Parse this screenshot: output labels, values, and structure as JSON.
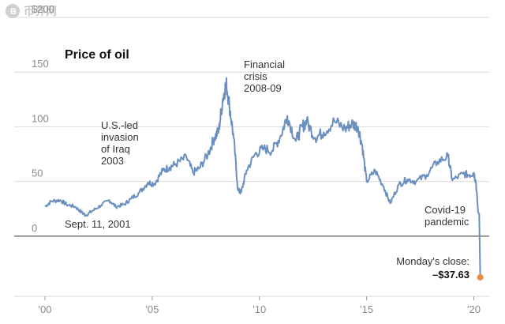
{
  "watermark": {
    "text": "币界网"
  },
  "chart_data": {
    "type": "line",
    "title": "Price of oil",
    "xlabel": "",
    "ylabel": "",
    "xlim": [
      2000.0,
      2020.35
    ],
    "ylim": [
      -55,
      200
    ],
    "y_ticks": [
      0,
      50,
      100,
      150,
      200
    ],
    "y_tick_labels": [
      "0",
      "50",
      "100",
      "150",
      "$200"
    ],
    "x_ticks": [
      2000,
      2005,
      2010,
      2015,
      2020
    ],
    "x_tick_labels": [
      "'00",
      "'05",
      "'10",
      "'15",
      "'20"
    ],
    "grid": true,
    "series": [
      {
        "color": "#6a8fbf",
        "x": [
          2000.0,
          2000.3,
          2000.7,
          2001.0,
          2001.4,
          2001.7,
          2001.9,
          2002.2,
          2002.6,
          2003.0,
          2003.3,
          2003.7,
          2004.0,
          2004.4,
          2004.8,
          2005.1,
          2005.5,
          2005.8,
          2006.1,
          2006.6,
          2006.9,
          2007.2,
          2007.6,
          2007.9,
          2008.1,
          2008.3,
          2008.45,
          2008.6,
          2008.8,
          2009.0,
          2009.15,
          2009.4,
          2009.8,
          2010.2,
          2010.6,
          2011.0,
          2011.3,
          2011.7,
          2012.0,
          2012.2,
          2012.6,
          2013.0,
          2013.5,
          2014.0,
          2014.3,
          2014.6,
          2014.8,
          2015.0,
          2015.4,
          2015.8,
          2016.1,
          2016.5,
          2016.9,
          2017.3,
          2017.8,
          2018.3,
          2018.8,
          2019.0,
          2019.5,
          2019.8,
          2020.0,
          2020.1,
          2020.2,
          2020.25,
          2020.3
        ],
        "y": [
          27,
          32,
          33,
          29,
          27,
          22,
          19,
          23,
          28,
          33,
          27,
          29,
          34,
          40,
          49,
          48,
          60,
          63,
          66,
          72,
          58,
          62,
          75,
          90,
          96,
          126,
          140,
          120,
          90,
          42,
          40,
          60,
          75,
          80,
          78,
          92,
          110,
          87,
          100,
          105,
          90,
          95,
          105,
          98,
          103,
          100,
          82,
          50,
          60,
          45,
          30,
          47,
          52,
          50,
          56,
          68,
          73,
          51,
          57,
          56,
          58,
          49,
          22,
          20,
          -37.63
        ]
      }
    ],
    "annotations": [
      {
        "id": "sept11",
        "lines": [
          "Sept. 11, 2001"
        ]
      },
      {
        "id": "iraq",
        "lines": [
          "U.S.-led",
          "invasion",
          "of Iraq",
          "2003"
        ]
      },
      {
        "id": "crisis",
        "lines": [
          "Financial",
          "crisis",
          "2008-09"
        ]
      },
      {
        "id": "covid",
        "lines": [
          "Covid-19",
          "pandemic"
        ]
      },
      {
        "id": "close",
        "lines": [
          "Monday's close:"
        ],
        "value_label": "–$37.63",
        "marker_color": "#f08a3c"
      }
    ]
  }
}
